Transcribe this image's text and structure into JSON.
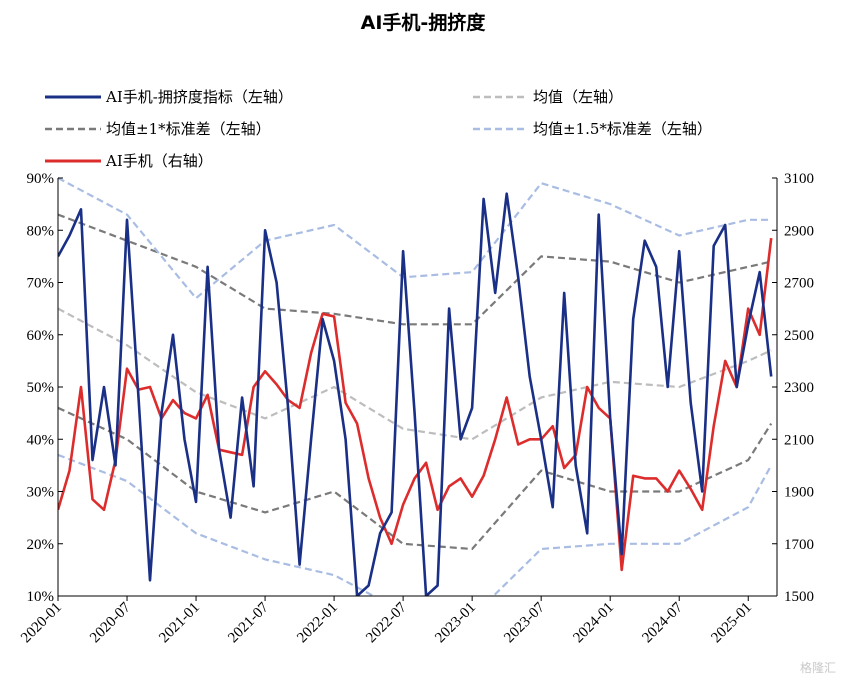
{
  "watermark": "格隆汇",
  "chart_data": {
    "type": "line",
    "title": "AI手机-拥挤度",
    "x_ticks": [
      "2020-01",
      "2020-07",
      "2021-01",
      "2021-07",
      "2022-01",
      "2022-07",
      "2023-01",
      "2023-07",
      "2024-01",
      "2024-07",
      "2025-01"
    ],
    "y_left": {
      "ticks": [
        "10%",
        "20%",
        "30%",
        "40%",
        "50%",
        "60%",
        "70%",
        "80%",
        "90%"
      ],
      "range": [
        10,
        90
      ]
    },
    "y_right": {
      "ticks": [
        "1500",
        "1700",
        "1900",
        "2100",
        "2300",
        "2500",
        "2700",
        "2900",
        "3100"
      ],
      "range": [
        1500,
        3100
      ]
    },
    "grid": false,
    "legend_position": "top",
    "colors": {
      "crowding": "#1a2f86",
      "mean": "#bdbdbd",
      "band1": "#7a7a7a",
      "band15": "#a9bde3",
      "price": "#dd2c2c"
    },
    "series": [
      {
        "name": "AI手机-拥挤度指标（左轴）",
        "axis": "left",
        "x": [
          "2020-01",
          "2020-02",
          "2020-03",
          "2020-04",
          "2020-05",
          "2020-06",
          "2020-07",
          "2020-08",
          "2020-09",
          "2020-10",
          "2020-11",
          "2020-12",
          "2021-01",
          "2021-02",
          "2021-03",
          "2021-04",
          "2021-05",
          "2021-06",
          "2021-07",
          "2021-08",
          "2021-09",
          "2021-10",
          "2021-11",
          "2021-12",
          "2022-01",
          "2022-02",
          "2022-03",
          "2022-04",
          "2022-05",
          "2022-06",
          "2022-07",
          "2022-08",
          "2022-09",
          "2022-10",
          "2022-11",
          "2022-12",
          "2023-01",
          "2023-02",
          "2023-03",
          "2023-04",
          "2023-05",
          "2023-06",
          "2023-07",
          "2023-08",
          "2023-09",
          "2023-10",
          "2023-11",
          "2023-12",
          "2024-01",
          "2024-02",
          "2024-03",
          "2024-04",
          "2024-05",
          "2024-06",
          "2024-07",
          "2024-08",
          "2024-09",
          "2024-10",
          "2024-11",
          "2024-12",
          "2025-01",
          "2025-02",
          "2025-03"
        ],
        "values": [
          75,
          79,
          84,
          36,
          50,
          35,
          82,
          48,
          13,
          45,
          60,
          40,
          28,
          73,
          38,
          25,
          48,
          31,
          80,
          70,
          46,
          16,
          40,
          63,
          55,
          40,
          10,
          12,
          22,
          26,
          76,
          45,
          10,
          12,
          65,
          40,
          46,
          86,
          68,
          87,
          71,
          52,
          40,
          27,
          68,
          35,
          22,
          83,
          44,
          18,
          63,
          78,
          73,
          50,
          76,
          47,
          30,
          77,
          81,
          50,
          62,
          72,
          52
        ]
      },
      {
        "name": "均值（左轴）",
        "axis": "left",
        "x": [
          "2020-01",
          "2020-07",
          "2021-01",
          "2021-07",
          "2022-01",
          "2022-07",
          "2023-01",
          "2023-07",
          "2024-01",
          "2024-07",
          "2025-01",
          "2025-03"
        ],
        "values": [
          65,
          58,
          49,
          44,
          50,
          42,
          40,
          48,
          51,
          50,
          55,
          57
        ]
      },
      {
        "name": "均值±1*标准差（左轴）",
        "axis": "left",
        "x": [
          "2020-01",
          "2020-07",
          "2021-01",
          "2021-07",
          "2022-01",
          "2022-07",
          "2023-01",
          "2023-07",
          "2024-01",
          "2024-07",
          "2025-01",
          "2025-03"
        ],
        "values": [
          83,
          78,
          73,
          65,
          64,
          62,
          62,
          75,
          74,
          70,
          73,
          74
        ]
      },
      {
        "name": "均值±1*标准差（左轴）",
        "axis": "left",
        "x": [
          "2020-01",
          "2020-07",
          "2021-01",
          "2021-07",
          "2022-01",
          "2022-07",
          "2023-01",
          "2023-07",
          "2024-01",
          "2024-07",
          "2025-01",
          "2025-03"
        ],
        "values": [
          46,
          40,
          30,
          26,
          30,
          20,
          19,
          34,
          30,
          30,
          36,
          43
        ]
      },
      {
        "name": "均值±1.5*标准差（左轴）",
        "axis": "left",
        "x": [
          "2020-01",
          "2020-07",
          "2021-01",
          "2021-07",
          "2022-01",
          "2022-07",
          "2023-01",
          "2023-07",
          "2024-01",
          "2024-07",
          "2025-01",
          "2025-03"
        ],
        "values": [
          90,
          83,
          67,
          78,
          81,
          71,
          72,
          89,
          85,
          79,
          82,
          82
        ]
      },
      {
        "name": "均值±1.5*标准差（左轴）",
        "axis": "left",
        "x": [
          "2020-01",
          "2020-07",
          "2021-01",
          "2021-07",
          "2022-01",
          "2022-07",
          "2023-01",
          "2023-07",
          "2024-01",
          "2024-07",
          "2025-01",
          "2025-03"
        ],
        "values": [
          37,
          32,
          22,
          17,
          14,
          7,
          6,
          19,
          20,
          20,
          27,
          35
        ]
      },
      {
        "name": "AI手机（右轴）",
        "axis": "right",
        "x": [
          "2020-01",
          "2020-02",
          "2020-03",
          "2020-04",
          "2020-05",
          "2020-06",
          "2020-07",
          "2020-08",
          "2020-09",
          "2020-10",
          "2020-11",
          "2020-12",
          "2021-01",
          "2021-02",
          "2021-03",
          "2021-04",
          "2021-05",
          "2021-06",
          "2021-07",
          "2021-08",
          "2021-09",
          "2021-10",
          "2021-11",
          "2021-12",
          "2022-01",
          "2022-02",
          "2022-03",
          "2022-04",
          "2022-05",
          "2022-06",
          "2022-07",
          "2022-08",
          "2022-09",
          "2022-10",
          "2022-11",
          "2022-12",
          "2023-01",
          "2023-02",
          "2023-03",
          "2023-04",
          "2023-05",
          "2023-06",
          "2023-07",
          "2023-08",
          "2023-09",
          "2023-10",
          "2023-11",
          "2023-12",
          "2024-01",
          "2024-02",
          "2024-03",
          "2024-04",
          "2024-05",
          "2024-06",
          "2024-07",
          "2024-08",
          "2024-09",
          "2024-10",
          "2024-11",
          "2024-12",
          "2025-01",
          "2025-02",
          "2025-03"
        ],
        "values": [
          1830,
          1980,
          2300,
          1870,
          1830,
          2020,
          2370,
          2290,
          2300,
          2180,
          2250,
          2200,
          2180,
          2270,
          2060,
          2050,
          2040,
          2300,
          2360,
          2310,
          2250,
          2220,
          2430,
          2580,
          2570,
          2240,
          2160,
          1950,
          1800,
          1700,
          1850,
          1950,
          2010,
          1830,
          1920,
          1950,
          1880,
          1960,
          2100,
          2260,
          2080,
          2100,
          2100,
          2150,
          1990,
          2040,
          2300,
          2220,
          2180,
          1600,
          1960,
          1950,
          1950,
          1900,
          1980,
          1910,
          1830,
          2150,
          2400,
          2300,
          2600,
          2500,
          2870
        ]
      }
    ],
    "legend": [
      {
        "label": "AI手机-拥挤度指标（左轴）",
        "style": "solid",
        "color_key": "crowding"
      },
      {
        "label": "均值（左轴）",
        "style": "dashed",
        "color_key": "mean"
      },
      {
        "label": "均值±1*标准差（左轴）",
        "style": "dashed",
        "color_key": "band1"
      },
      {
        "label": "均值±1.5*标准差（左轴）",
        "style": "dashed",
        "color_key": "band15"
      },
      {
        "label": "AI手机（右轴）",
        "style": "solid",
        "color_key": "price"
      }
    ]
  }
}
